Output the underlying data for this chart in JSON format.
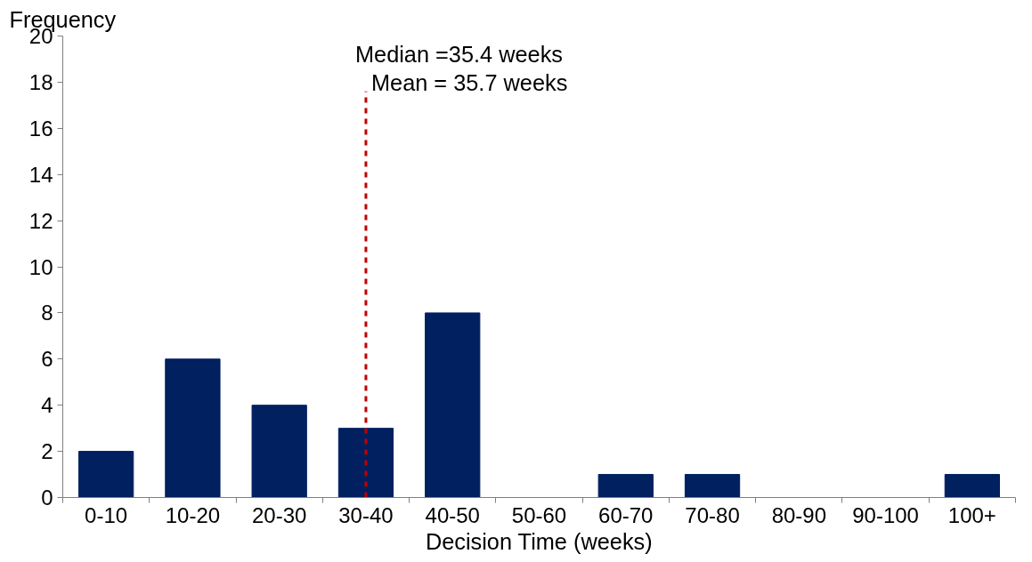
{
  "chart_data": {
    "type": "bar",
    "ylabel": "Frequency",
    "xlabel": "Decision Time (weeks)",
    "categories": [
      "0-10",
      "10-20",
      "20-30",
      "30-40",
      "40-50",
      "50-60",
      "60-70",
      "70-80",
      "80-90",
      "90-100",
      "100+"
    ],
    "values": [
      2,
      6,
      4,
      3,
      8,
      0,
      1,
      1,
      0,
      0,
      1
    ],
    "color": "#002060",
    "ylim": [
      0,
      20
    ],
    "yticks": [
      0,
      2,
      4,
      6,
      8,
      10,
      12,
      14,
      16,
      18,
      20
    ],
    "ref_lines": [
      {
        "axis": "x",
        "value": "30-40",
        "color": "#c00000",
        "line_style": "dashed"
      }
    ],
    "annotations": [
      "Median =35.4 weeks",
      "Mean = 35.7 weeks"
    ],
    "grid": false
  }
}
